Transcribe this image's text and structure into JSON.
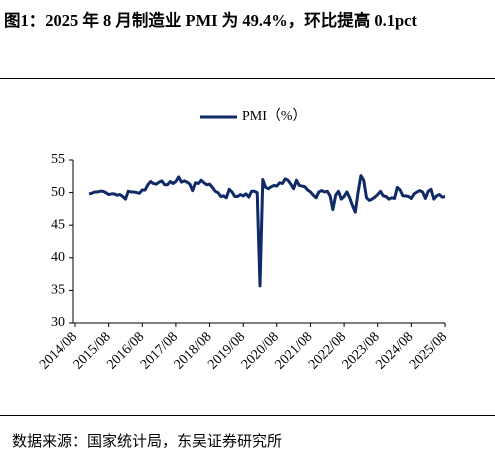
{
  "chart_data": {
    "type": "line",
    "title": "图1：2025 年 8 月制造业 PMI 为 49.4%，环比提高 0.1pct",
    "source": "数据来源：国家统计局，东吴证券研究所",
    "categories": [
      "2014/08",
      null,
      null,
      null,
      null,
      null,
      null,
      null,
      null,
      null,
      null,
      null,
      "2015/08",
      null,
      null,
      null,
      null,
      null,
      null,
      null,
      null,
      null,
      null,
      null,
      "2016/08",
      null,
      null,
      null,
      null,
      null,
      null,
      null,
      null,
      null,
      null,
      null,
      "2017/08",
      null,
      null,
      null,
      null,
      null,
      null,
      null,
      null,
      null,
      null,
      null,
      "2018/08",
      null,
      null,
      null,
      null,
      null,
      null,
      null,
      null,
      null,
      null,
      null,
      "2019/08",
      null,
      null,
      null,
      null,
      null,
      null,
      null,
      null,
      null,
      null,
      null,
      "2020/08",
      null,
      null,
      null,
      null,
      null,
      null,
      null,
      null,
      null,
      null,
      null,
      "2021/08",
      null,
      null,
      null,
      null,
      null,
      null,
      null,
      null,
      null,
      null,
      null,
      "2022/08",
      null,
      null,
      null,
      null,
      null,
      null,
      null,
      null,
      null,
      null,
      null,
      "2023/08",
      null,
      null,
      null,
      null,
      null,
      null,
      null,
      null,
      null,
      null,
      null,
      "2024/08",
      null,
      null,
      null,
      null,
      null,
      null,
      null,
      null,
      null,
      null,
      null,
      "2025/08"
    ],
    "series": [
      {
        "name": "PMI（%）",
        "color": "#0f2a66",
        "values": [
          null,
          null,
          null,
          null,
          null,
          49.8,
          49.9,
          50.1,
          50.1,
          50.2,
          50.2,
          50.0,
          49.7,
          49.8,
          49.8,
          49.6,
          49.7,
          49.4,
          49.0,
          50.2,
          50.1,
          50.1,
          50.0,
          49.9,
          50.4,
          50.4,
          51.2,
          51.7,
          51.4,
          51.3,
          51.6,
          51.8,
          51.2,
          51.2,
          51.7,
          51.4,
          51.7,
          52.4,
          51.6,
          51.8,
          51.6,
          51.3,
          50.3,
          51.5,
          51.4,
          51.9,
          51.5,
          51.2,
          51.3,
          50.8,
          50.2,
          50.0,
          49.4,
          49.5,
          49.2,
          50.5,
          50.1,
          49.4,
          49.4,
          49.7,
          49.5,
          49.8,
          49.3,
          50.2,
          50.2,
          50.0,
          35.7,
          52.0,
          50.8,
          50.6,
          50.9,
          51.1,
          51.0,
          51.5,
          51.4,
          52.1,
          51.9,
          51.3,
          50.6,
          51.9,
          51.1,
          51.0,
          50.9,
          50.4,
          50.1,
          49.6,
          49.2,
          50.1,
          50.3,
          50.1,
          50.2,
          49.5,
          47.4,
          49.6,
          50.2,
          49.0,
          49.4,
          50.1,
          49.2,
          48.0,
          47.0,
          50.1,
          52.6,
          51.9,
          49.2,
          48.8,
          49.0,
          49.3,
          49.7,
          50.2,
          49.5,
          49.4,
          49.0,
          49.2,
          49.1,
          50.8,
          50.4,
          49.5,
          49.5,
          49.4,
          49.1,
          49.8,
          50.1,
          50.3,
          50.1,
          49.1,
          50.2,
          50.5,
          49.0,
          49.5,
          49.7,
          49.3,
          49.4
        ]
      }
    ],
    "ylim": [
      30,
      55
    ],
    "yticks": [
      30,
      35,
      40,
      45,
      50,
      55
    ],
    "grid": false,
    "legend": "top"
  }
}
